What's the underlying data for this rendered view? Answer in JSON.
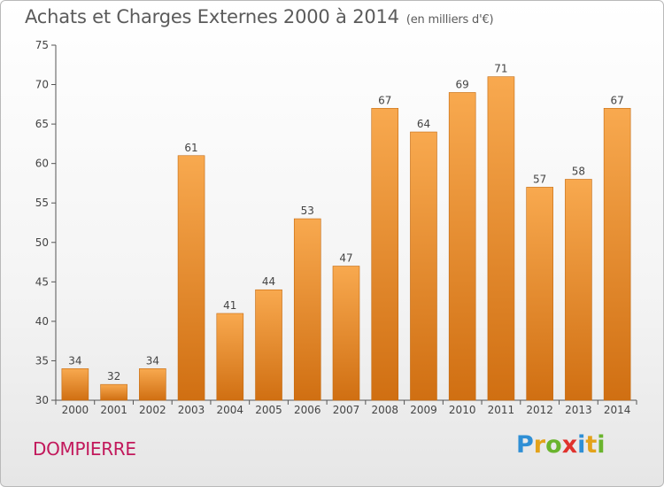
{
  "chart_data": {
    "type": "bar",
    "title": "Achats et Charges Externes 2000 à 2014",
    "subtitle": "(en milliers d'€)",
    "categories": [
      "2000",
      "2001",
      "2002",
      "2003",
      "2004",
      "2005",
      "2006",
      "2007",
      "2008",
      "2009",
      "2010",
      "2011",
      "2012",
      "2013",
      "2014"
    ],
    "values": [
      34,
      32,
      34,
      61,
      41,
      44,
      53,
      47,
      67,
      64,
      69,
      71,
      57,
      58,
      67
    ],
    "ylim": [
      30,
      75
    ],
    "yticks": [
      30,
      35,
      40,
      45,
      50,
      55,
      60,
      65,
      70,
      75
    ],
    "xlabel": "",
    "ylabel": "",
    "grid": false,
    "bar_color_top": "#f8a94f",
    "bar_color_bottom": "#d06f12"
  },
  "commune": "DOMPIERRE",
  "logo": {
    "letters": [
      "P",
      "r",
      "o",
      "x",
      "i",
      "t",
      "i"
    ],
    "colors": [
      "#2f8fd5",
      "#e3a21a",
      "#6ab42d",
      "#e0322d",
      "#2f8fd5",
      "#e3a21a",
      "#6ab42d"
    ]
  }
}
